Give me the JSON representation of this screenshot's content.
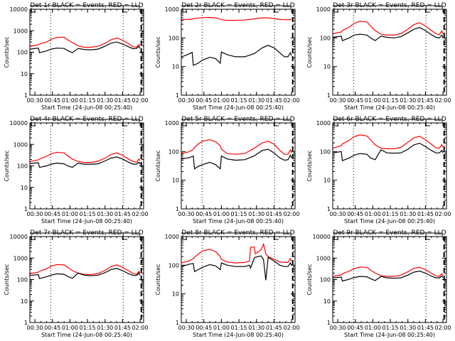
{
  "chart_data": [
    {
      "type": "line",
      "id": "det1r",
      "title": "Det 1r BLACK = Events, RED = LLD",
      "xlabel": "Start Time (24-Jun-08 00:25:40)",
      "ylabel": "Counts/sec",
      "yscale": "log",
      "ylim": [
        1,
        10000
      ],
      "yticks": [
        "1",
        "10",
        "100",
        "1000",
        "10000"
      ],
      "xticks": [
        "00:30",
        "00:45",
        "01:00",
        "01:15",
        "01:30",
        "01:45",
        "02:00"
      ],
      "xlim_min": [
        25.7,
        123
      ],
      "vlines_dotted": [
        43.5,
        105.5
      ],
      "vline_dashed": 121,
      "x": [
        26,
        33,
        34,
        40,
        44,
        49,
        55,
        58,
        62,
        67,
        72,
        78,
        84,
        90,
        95,
        100,
        105,
        110,
        114,
        117,
        119,
        120
      ],
      "series": [
        {
          "name": "LLD",
          "color": "#ff0000",
          "values": [
            190,
            220,
            240,
            300,
            400,
            490,
            500,
            380,
            280,
            200,
            170,
            170,
            190,
            260,
            380,
            460,
            360,
            250,
            180,
            170,
            230,
            200
          ]
        },
        {
          "name": "Events",
          "color": "#000000",
          "values": [
            140,
            155,
            95,
            115,
            140,
            155,
            150,
            120,
            95,
            150,
            135,
            130,
            140,
            190,
            260,
            300,
            240,
            180,
            145,
            150,
            190,
            150
          ]
        }
      ]
    },
    {
      "type": "line",
      "id": "det2r",
      "title": "Det 2r BLACK = Events, RED = LLD",
      "xlabel": "Start Time (24-Jun-08 00:25:40)",
      "ylabel": "Counts/sec",
      "yscale": "log",
      "ylim": [
        1,
        1000
      ],
      "yticks": [
        "1",
        "10",
        "100",
        "1000"
      ],
      "xticks": [
        "00:30",
        "00:45",
        "01:00",
        "01:15",
        "01:30",
        "01:45",
        "02:00"
      ],
      "xlim_min": [
        25.7,
        123
      ],
      "vlines_dotted": [
        43.5,
        105.5
      ],
      "vline_dashed": 121,
      "x": [
        26,
        30,
        35,
        36,
        40,
        44,
        50,
        55,
        59,
        60,
        65,
        72,
        80,
        88,
        95,
        100,
        105,
        110,
        114,
        117,
        119,
        120
      ],
      "series": [
        {
          "name": "LLD",
          "color": "#ff0000",
          "values": [
            430,
            440,
            450,
            470,
            490,
            510,
            520,
            500,
            450,
            430,
            410,
            410,
            420,
            460,
            500,
            500,
            470,
            440,
            430,
            430,
            440,
            440
          ]
        },
        {
          "name": "Events",
          "color": "#000000",
          "values": [
            22,
            25,
            31,
            11,
            13,
            17,
            21,
            19,
            13,
            32,
            26,
            22,
            22,
            28,
            45,
            55,
            45,
            30,
            22,
            22,
            30,
            24
          ]
        }
      ]
    },
    {
      "type": "line",
      "id": "det3r",
      "title": "Det 3r BLACK = Events, RED = LLD",
      "xlabel": "Start Time (24-Jun-08 00:25:40)",
      "ylabel": "Counts/sec",
      "yscale": "log",
      "ylim": [
        1,
        1000
      ],
      "yticks": [
        "1",
        "10",
        "100",
        "1000"
      ],
      "xticks": [
        "00:30",
        "00:45",
        "01:00",
        "01:15",
        "01:30",
        "01:45",
        "02:00"
      ],
      "xlim_min": [
        25.7,
        123
      ],
      "vlines_dotted": [
        43.5,
        105.5
      ],
      "vline_dashed": 121,
      "x": [
        26,
        33,
        34,
        40,
        44,
        49,
        55,
        58,
        62,
        67,
        72,
        78,
        84,
        90,
        95,
        100,
        105,
        110,
        114,
        117,
        119,
        120
      ],
      "series": [
        {
          "name": "LLD",
          "color": "#ff0000",
          "values": [
            140,
            160,
            180,
            240,
            320,
            380,
            360,
            260,
            180,
            135,
            125,
            125,
            140,
            200,
            290,
            340,
            260,
            180,
            140,
            130,
            175,
            140
          ]
        },
        {
          "name": "Events",
          "color": "#000000",
          "values": [
            105,
            115,
            80,
            100,
            125,
            135,
            125,
            100,
            80,
            115,
            105,
            100,
            110,
            150,
            200,
            230,
            180,
            130,
            105,
            100,
            125,
            105
          ]
        }
      ]
    },
    {
      "type": "line",
      "id": "det4r",
      "title": "Det 4r BLACK = Events, RED = LLD",
      "xlabel": "Start Time (24-Jun-08 00:25:40)",
      "ylabel": "Counts/sec",
      "yscale": "log",
      "ylim": [
        1,
        10000
      ],
      "yticks": [
        "1",
        "10",
        "100",
        "1000",
        "10000"
      ],
      "xticks": [
        "00:30",
        "00:45",
        "01:00",
        "01:15",
        "01:30",
        "01:45",
        "02:00"
      ],
      "xlim_min": [
        25.7,
        123
      ],
      "vlines_dotted": [
        43.5,
        105.5
      ],
      "vline_dashed": 121,
      "x": [
        26,
        33,
        34,
        40,
        44,
        49,
        55,
        58,
        62,
        67,
        72,
        78,
        84,
        90,
        95,
        100,
        105,
        110,
        114,
        117,
        119,
        120
      ],
      "series": [
        {
          "name": "LLD",
          "color": "#ff0000",
          "values": [
            160,
            190,
            210,
            280,
            370,
            430,
            400,
            300,
            210,
            160,
            145,
            145,
            165,
            230,
            340,
            400,
            310,
            210,
            160,
            150,
            210,
            175
          ]
        },
        {
          "name": "Events",
          "color": "#000000",
          "values": [
            130,
            140,
            85,
            100,
            120,
            135,
            125,
            100,
            85,
            135,
            120,
            120,
            125,
            170,
            230,
            260,
            210,
            150,
            120,
            120,
            150,
            120
          ]
        }
      ]
    },
    {
      "type": "line",
      "id": "det5r",
      "title": "Det 5r BLACK = Events, RED = LLD",
      "xlabel": "Start Time (24-Jun-08 00:25:40)",
      "ylabel": "Counts/sec",
      "yscale": "log",
      "ylim": [
        1,
        1000
      ],
      "yticks": [
        "1",
        "10",
        "100",
        "1000"
      ],
      "xticks": [
        "00:30",
        "00:45",
        "01:00",
        "01:15",
        "01:30",
        "01:45",
        "02:00"
      ],
      "xlim_min": [
        25.7,
        123
      ],
      "vlines_dotted": [
        43.5,
        105.5
      ],
      "vline_dashed": 121,
      "x": [
        26,
        33,
        36,
        37,
        40,
        44,
        50,
        55,
        59,
        60,
        65,
        72,
        80,
        88,
        95,
        100,
        105,
        110,
        114,
        117,
        119,
        120
      ],
      "series": [
        {
          "name": "LLD",
          "color": "#ff0000",
          "values": [
            85,
            100,
            120,
            140,
            180,
            230,
            260,
            220,
            160,
            120,
            85,
            80,
            85,
            130,
            200,
            230,
            180,
            110,
            80,
            80,
            115,
            90
          ]
        },
        {
          "name": "Events",
          "color": "#000000",
          "values": [
            55,
            62,
            70,
            25,
            30,
            35,
            42,
            35,
            25,
            70,
            55,
            50,
            52,
            70,
            110,
            120,
            90,
            60,
            50,
            52,
            75,
            60
          ]
        }
      ]
    },
    {
      "type": "line",
      "id": "det6r",
      "title": "Det 6r BLACK = Events, RED = LLD",
      "xlabel": "Start Time (24-Jun-08 00:25:40)",
      "ylabel": "Counts/sec",
      "yscale": "log",
      "ylim": [
        1,
        1000
      ],
      "yticks": [
        "1",
        "10",
        "100",
        "1000"
      ],
      "xticks": [
        "00:30",
        "00:45",
        "01:00",
        "01:15",
        "01:30",
        "01:45",
        "02:00"
      ],
      "xlim_min": [
        25.7,
        123
      ],
      "vlines_dotted": [
        43.5,
        105.5
      ],
      "vline_dashed": 121,
      "x": [
        26,
        33,
        34,
        40,
        44,
        49,
        55,
        58,
        62,
        67,
        72,
        78,
        84,
        90,
        95,
        100,
        105,
        110,
        114,
        117,
        119,
        120
      ],
      "series": [
        {
          "name": "LLD",
          "color": "#ff0000",
          "values": [
            130,
            160,
            185,
            250,
            330,
            380,
            350,
            260,
            170,
            130,
            125,
            125,
            140,
            210,
            300,
            340,
            260,
            180,
            135,
            130,
            175,
            140
          ]
        },
        {
          "name": "Events",
          "color": "#000000",
          "values": [
            90,
            100,
            48,
            60,
            75,
            85,
            80,
            60,
            52,
            115,
            90,
            88,
            90,
            120,
            170,
            195,
            150,
            110,
            90,
            90,
            110,
            90
          ]
        }
      ]
    },
    {
      "type": "line",
      "id": "det7r",
      "title": "Det 7r BLACK = Events, RED = LLD",
      "xlabel": "Start Time (24-Jun-08 00:25:40)",
      "ylabel": "Counts/sec",
      "yscale": "log",
      "ylim": [
        1,
        10000
      ],
      "yticks": [
        "1",
        "10",
        "100",
        "1000",
        "10000"
      ],
      "xticks": [
        "00:30",
        "00:45",
        "01:00",
        "01:15",
        "01:30",
        "01:45",
        "02:00"
      ],
      "xlim_min": [
        25.7,
        123
      ],
      "vlines_dotted": [
        43.5,
        105.5
      ],
      "vline_dashed": 121,
      "x": [
        26,
        33,
        34,
        40,
        44,
        49,
        55,
        58,
        62,
        67,
        72,
        78,
        84,
        90,
        95,
        100,
        105,
        110,
        114,
        117,
        119,
        120
      ],
      "series": [
        {
          "name": "LLD",
          "color": "#ff0000",
          "values": [
            190,
            220,
            240,
            320,
            420,
            500,
            480,
            370,
            260,
            200,
            175,
            170,
            190,
            270,
            400,
            480,
            370,
            260,
            190,
            175,
            240,
            200
          ]
        },
        {
          "name": "Events",
          "color": "#000000",
          "values": [
            155,
            170,
            110,
            135,
            160,
            185,
            175,
            140,
            115,
            200,
            160,
            150,
            160,
            210,
            290,
            330,
            260,
            190,
            155,
            155,
            200,
            160
          ]
        }
      ]
    },
    {
      "type": "line",
      "id": "det8r",
      "title": "Det 8r BLACK = Events, RED = LLD",
      "xlabel": "Start Time (24-Jun-08 00:25:40)",
      "ylabel": "Counts/sec",
      "yscale": "log",
      "ylim": [
        1,
        1000
      ],
      "yticks": [
        "1",
        "10",
        "100",
        "1000"
      ],
      "xticks": [
        "00:30",
        "00:45",
        "01:00",
        "01:15",
        "01:30",
        "01:45",
        "02:00"
      ],
      "xlim_min": [
        25.7,
        123
      ],
      "vlines_dotted": [
        43.5,
        105.5
      ],
      "vline_dashed": 121,
      "x": [
        26,
        33,
        36,
        37,
        40,
        44,
        50,
        55,
        59,
        60,
        65,
        72,
        80,
        84,
        85,
        88,
        89,
        94,
        96,
        98,
        100,
        105,
        110,
        114,
        117,
        119,
        120
      ],
      "series": [
        {
          "name": "LLD",
          "color": "#ff0000",
          "values": [
            120,
            145,
            170,
            190,
            240,
            320,
            360,
            300,
            200,
            160,
            130,
            120,
            125,
            140,
            420,
            440,
            250,
            350,
            550,
            250,
            200,
            160,
            130,
            125,
            125,
            170,
            140
          ]
        },
        {
          "name": "Events",
          "color": "#000000",
          "values": [
            90,
            110,
            115,
            60,
            70,
            85,
            105,
            95,
            70,
            120,
            100,
            90,
            90,
            100,
            80,
            170,
            190,
            210,
            160,
            30,
            190,
            140,
            100,
            90,
            90,
            120,
            100
          ]
        }
      ]
    },
    {
      "type": "line",
      "id": "det9r",
      "title": "Det 9r BLACK = Events, RED = LLD",
      "xlabel": "Start Time (24-Jun-08 00:25:40)",
      "ylabel": "Counts/sec",
      "yscale": "log",
      "ylim": [
        1,
        10000
      ],
      "yticks": [
        "1",
        "10",
        "100",
        "1000",
        "10000"
      ],
      "xticks": [
        "00:30",
        "00:45",
        "01:00",
        "01:15",
        "01:30",
        "01:45",
        "02:00"
      ],
      "xlim_min": [
        25.7,
        123
      ],
      "vlines_dotted": [
        43.5,
        105.5
      ],
      "vline_dashed": 121,
      "x": [
        26,
        33,
        34,
        40,
        44,
        49,
        55,
        58,
        62,
        67,
        72,
        78,
        84,
        90,
        95,
        100,
        105,
        110,
        114,
        117,
        119,
        120
      ],
      "series": [
        {
          "name": "LLD",
          "color": "#ff0000",
          "values": [
            140,
            165,
            185,
            250,
            320,
            380,
            370,
            280,
            200,
            150,
            140,
            140,
            160,
            230,
            330,
            370,
            290,
            200,
            150,
            140,
            190,
            155
          ]
        },
        {
          "name": "Events",
          "color": "#000000",
          "values": [
            120,
            130,
            85,
            105,
            125,
            140,
            135,
            110,
            90,
            140,
            120,
            115,
            120,
            160,
            220,
            250,
            200,
            145,
            120,
            120,
            145,
            125
          ]
        }
      ]
    }
  ]
}
